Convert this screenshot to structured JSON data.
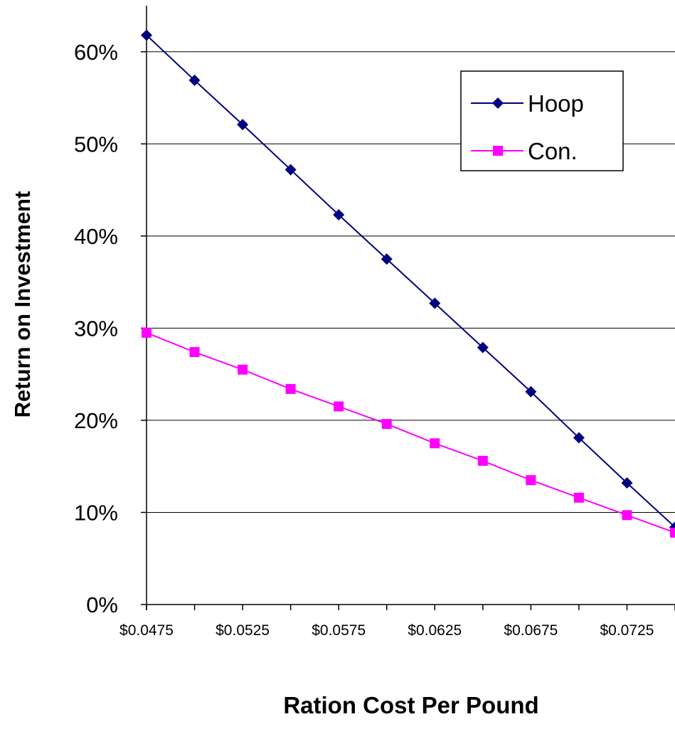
{
  "chart_data": {
    "type": "line",
    "title": "",
    "xlabel": "Ration Cost Per Pound",
    "ylabel": "Return on Investment",
    "x": [
      0.0475,
      0.05,
      0.0525,
      0.055,
      0.0575,
      0.06,
      0.0625,
      0.065,
      0.0675,
      0.07,
      0.0725,
      0.075
    ],
    "x_tick_values": [
      0.0475,
      0.0525,
      0.0575,
      0.0625,
      0.0675,
      0.0725
    ],
    "x_tick_labels": [
      "$0.0475",
      "$0.0525",
      "$0.0575",
      "$0.0625",
      "$0.0675",
      "$0.0725"
    ],
    "xlim": [
      0.0475,
      0.075
    ],
    "y_tick_values": [
      0,
      10,
      20,
      30,
      40,
      50,
      60
    ],
    "y_tick_labels": [
      "0%",
      "10%",
      "20%",
      "30%",
      "40%",
      "50%",
      "60%"
    ],
    "ylim": [
      0,
      65
    ],
    "grid": "horizontal",
    "legend_position": "top-right",
    "series": [
      {
        "name": "Hoop",
        "color": "#000080",
        "marker": "diamond",
        "values": [
          61.8,
          56.9,
          52.1,
          47.2,
          42.3,
          37.5,
          32.7,
          27.9,
          23.1,
          18.1,
          13.2,
          8.4
        ]
      },
      {
        "name": "Con.",
        "color": "#FF00FF",
        "marker": "square",
        "values": [
          29.5,
          27.4,
          25.5,
          23.4,
          21.5,
          19.6,
          17.5,
          15.6,
          13.5,
          11.6,
          9.7,
          7.8
        ]
      }
    ]
  }
}
